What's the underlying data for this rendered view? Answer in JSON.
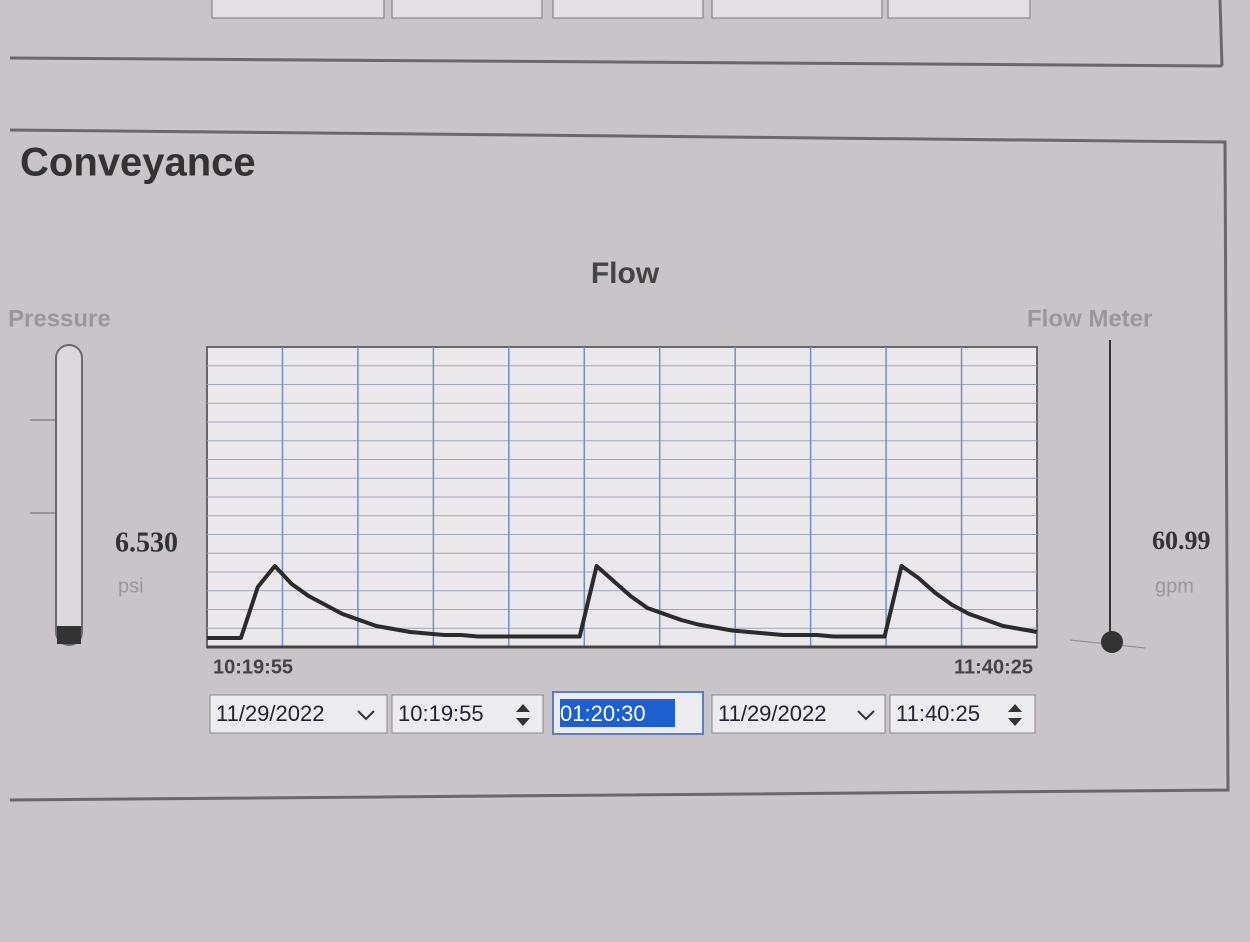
{
  "panel_title": "Conveyance",
  "flow": {
    "type": "line",
    "title": "Flow",
    "values": [
      3,
      3,
      3,
      20,
      27,
      21,
      17,
      14,
      11,
      9,
      7,
      6,
      5,
      4.5,
      4,
      4,
      3.5,
      3.5,
      3.5,
      3.5,
      3.5,
      3.5,
      3.5,
      27,
      22,
      17,
      13,
      11,
      9,
      7.5,
      6.5,
      5.5,
      5,
      4.5,
      4,
      4,
      4,
      3.5,
      3.5,
      3.5,
      3.5,
      27,
      23,
      18,
      14,
      11,
      9,
      7,
      6,
      5
    ],
    "ylim": [
      0,
      100
    ],
    "x_start_label": "10:19:55",
    "x_end_label": "11:40:25"
  },
  "pressure": {
    "label": "Pressure",
    "value": "6.530",
    "unit": "psi"
  },
  "flow_meter": {
    "label": "Flow Meter",
    "value": "60.99",
    "unit": "gpm"
  },
  "range_controls": {
    "start_date": "11/29/2022",
    "start_time": "10:19:55",
    "duration": "01:20:30",
    "end_date": "11/29/2022",
    "end_time": "11:40:25"
  }
}
